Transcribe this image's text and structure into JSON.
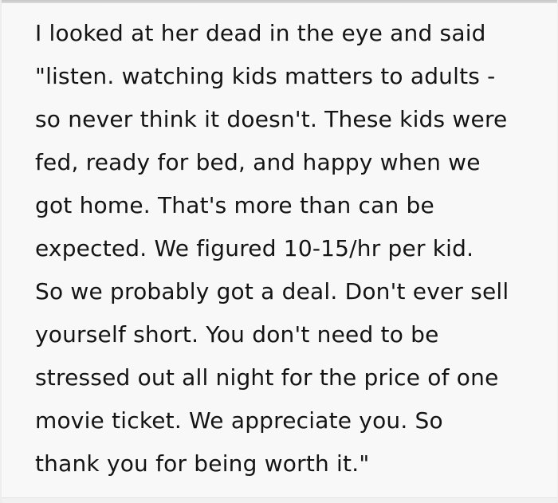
{
  "card": {
    "background_color": "#f8f8f8",
    "top_strip_color": "#c6c6c6",
    "side_border_color": "#ededed",
    "divider_color": "#e2e2e2",
    "text_color": "#141414"
  },
  "post": {
    "lines": [
      "I looked at her dead in the eye and said",
      "\"listen. watching kids matters to adults -",
      "so never think it doesn't. These kids were",
      "fed, ready for bed, and happy when we",
      "got home. That's more than can be",
      "expected. We figured 10-15/hr per kid.",
      "So we probably got a deal. Don't ever sell",
      "yourself short. You don't need to be",
      "stressed out all night for the price of one",
      "movie ticket. We appreciate you. So",
      "thank you for being worth it.\""
    ]
  }
}
